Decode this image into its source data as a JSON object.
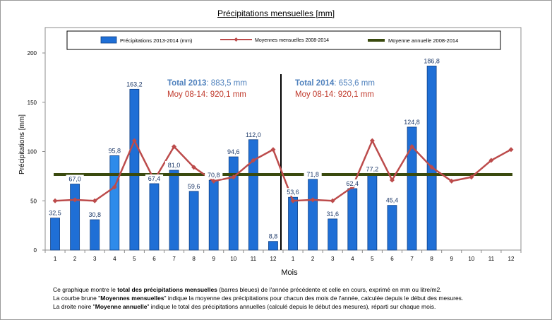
{
  "title": "Précipitations mensuelles [mm]",
  "chart_data": {
    "type": "bar",
    "categories": [
      "1",
      "2",
      "3",
      "4",
      "5",
      "6",
      "7",
      "8",
      "9",
      "10",
      "11",
      "12",
      "1",
      "2",
      "3",
      "4",
      "5",
      "6",
      "7",
      "8",
      "9",
      "10",
      "11",
      "12"
    ],
    "series": [
      {
        "name": "Précipitations 2013-2014 (mm)",
        "type": "bar",
        "values": [
          32.5,
          67.0,
          30.8,
          95.8,
          163.2,
          67.4,
          81.0,
          59.6,
          70.8,
          94.6,
          112.0,
          8.8,
          53.6,
          71.8,
          31.6,
          62.4,
          77.2,
          45.4,
          124.8,
          186.8,
          null,
          null,
          null,
          null
        ],
        "labels": [
          "32,5",
          "67,0",
          "30,8",
          "95,8",
          "163,2",
          "67,4",
          "81,0",
          "59,6",
          "70,8",
          "94,6",
          "112,0",
          "8,8",
          "53,6",
          "71,8",
          "31,6",
          "62,4",
          "77,2",
          "45,4",
          "124,8",
          "186,8",
          "",
          "",
          "",
          ""
        ]
      },
      {
        "name": "Moyennes mensuelles 2008-2014",
        "type": "line",
        "values": [
          50,
          51,
          50,
          64,
          111,
          71,
          105,
          84,
          70,
          74,
          91,
          102,
          50,
          51,
          50,
          64,
          111,
          71,
          105,
          84,
          70,
          74,
          91,
          102
        ]
      },
      {
        "name": "Moyenne annuelle 2008-2014",
        "type": "hline",
        "value": 76.7
      }
    ],
    "xlabel": "Mois",
    "ylabel": "Précipitations [mm]",
    "ylim": [
      0,
      200
    ],
    "yticks": [
      0,
      50,
      100,
      150,
      200
    ],
    "grid": false,
    "legend": "top",
    "colors": {
      "bar": "#1f6fd6",
      "bar_highlight": "#2e8bea",
      "line": "#bc4b4b",
      "hline": "#3a4a0e",
      "label": "#1e3a6a"
    },
    "annotations": {
      "left": {
        "total_label": "Total 2013",
        "total_value": ": 883,5 mm",
        "moy_label": "Moy 08-14: 920,1 mm"
      },
      "right": {
        "total_label": "Total 2014",
        "total_value": ": 653,6 mm",
        "moy_label": "Moy 08-14: 920,1 mm"
      }
    }
  },
  "footnote": {
    "line1_pre": "Ce graphique  montre le ",
    "line1_bold": "total des précipitations mensuelles",
    "line1_post": " (barres bleues) de l'année précédente et celle en cours, exprimé en  mm ou litre/m2.",
    "line2_pre": "La courbe brune \"",
    "line2_bold": "Moyennes mensuelles",
    "line2_post": "\" indique la moyenne des précipitations pour chacun des mois de l'année, calculée depuis le début des mesures.",
    "line3_pre": "La droite noire \"",
    "line3_bold": "Moyenne annuelle",
    "line3_post": "\" indique le total des précipitations annuelles (calculé depuis le début  des mesures), réparti sur chaque mois."
  }
}
